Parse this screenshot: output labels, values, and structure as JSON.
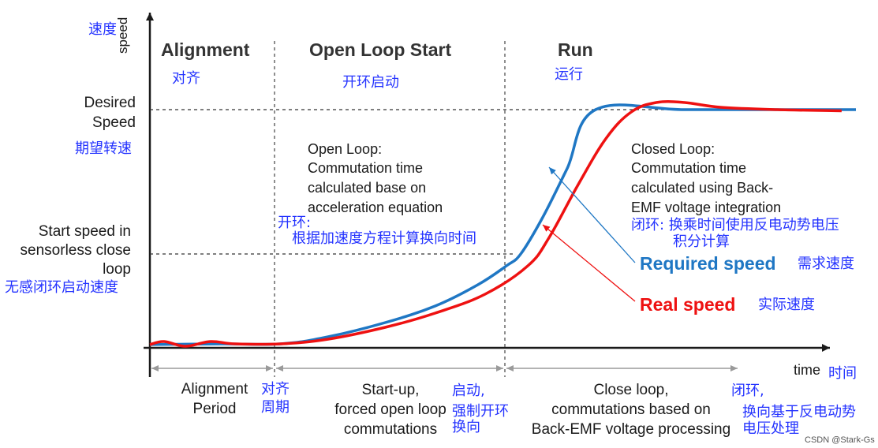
{
  "axes": {
    "y_label": "speed",
    "y_label_cn": "速度",
    "x_label": "time",
    "x_label_cn": "时间"
  },
  "phases": {
    "alignment": {
      "title": "Alignment",
      "title_cn": "对齐"
    },
    "open_loop": {
      "title": "Open Loop Start",
      "title_cn": "开环启动"
    },
    "run": {
      "title": "Run",
      "title_cn": "运行"
    }
  },
  "levels": {
    "desired_line1": "Desired",
    "desired_line2": "Speed",
    "desired_cn": "期望转速",
    "start_line1": "Start speed in",
    "start_line2": "sensorless close",
    "start_line3": "loop",
    "start_cn": "无感闭环启动速度"
  },
  "notes": {
    "open_loop_l1": "Open Loop:",
    "open_loop_l2": "Commutation time",
    "open_loop_l3": "calculated base on",
    "open_loop_l4": "acceleration equation",
    "open_loop_cn1": "开环:",
    "open_loop_cn2": "根据加速度方程计算换向时间",
    "closed_loop_l1": "Closed Loop:",
    "closed_loop_l2": "Commutation time",
    "closed_loop_l3": "calculated using Back-",
    "closed_loop_l4": "EMF voltage integration",
    "closed_loop_cn1": "闭环: 换乘时间使用反电动势电压",
    "closed_loop_cn2": "积分计算"
  },
  "legend": {
    "required": "Required speed",
    "required_cn": "需求速度",
    "real": "Real speed",
    "real_cn": "实际速度"
  },
  "periods": {
    "alignment_l1": "Alignment",
    "alignment_l2": "Period",
    "alignment_cn1": "对齐",
    "alignment_cn2": "周期",
    "startup_l1": "Start-up,",
    "startup_l2": "forced open loop",
    "startup_l3": "commutations",
    "startup_cn1": "启动,",
    "startup_cn2": "强制开环",
    "startup_cn3": "换向",
    "close_l1": "Close loop,",
    "close_l2": "commutations based on",
    "close_l3": "Back-EMF voltage processing",
    "close_cn1": "闭环,",
    "close_cn2": "换向基于反电动势",
    "close_cn3": "电压处理"
  },
  "watermark": "CSDN @Stark-Gs",
  "colors": {
    "required": "#1f77c4",
    "real": "#ee1111",
    "cn_text": "#2433ff"
  },
  "chart_data": {
    "type": "line",
    "title": "",
    "xlabel": "time",
    "ylabel": "speed",
    "x_units": "normalized time (0 = start, 1 = end of axis)",
    "y_units": "normalized speed (0 = zero, 1 = desired speed)",
    "xlim": [
      0,
      1
    ],
    "ylim": [
      0,
      1.05
    ],
    "reference_levels": [
      {
        "name": "Desired Speed",
        "y": 1.0
      },
      {
        "name": "Start speed in sensorless close loop",
        "y": 0.39
      }
    ],
    "phase_boundaries": [
      0.183,
      0.52
    ],
    "series": [
      {
        "name": "Required speed",
        "x": [
          0,
          0.1,
          0.183,
          0.25,
          0.33,
          0.4,
          0.46,
          0.5,
          0.52,
          0.55,
          0.585,
          0.625,
          0.75,
          0.9,
          0.99
        ],
        "y": [
          0.007,
          0.01,
          0.01,
          0.04,
          0.1,
          0.17,
          0.26,
          0.34,
          0.39,
          0.54,
          0.75,
          1.0,
          1.0,
          1.0,
          1.0
        ]
      },
      {
        "name": "Real speed",
        "x": [
          0,
          0.02,
          0.05,
          0.085,
          0.12,
          0.183,
          0.25,
          0.33,
          0.4,
          0.47,
          0.53,
          0.56,
          0.6,
          0.64,
          0.675,
          0.71,
          0.75,
          0.8,
          0.88,
          0.97
        ],
        "y": [
          0.007,
          0.02,
          0.0,
          0.02,
          0.01,
          0.01,
          0.03,
          0.08,
          0.14,
          0.22,
          0.34,
          0.46,
          0.68,
          0.88,
          0.99,
          1.03,
          1.03,
          1.01,
          1.0,
          0.995
        ]
      }
    ]
  }
}
